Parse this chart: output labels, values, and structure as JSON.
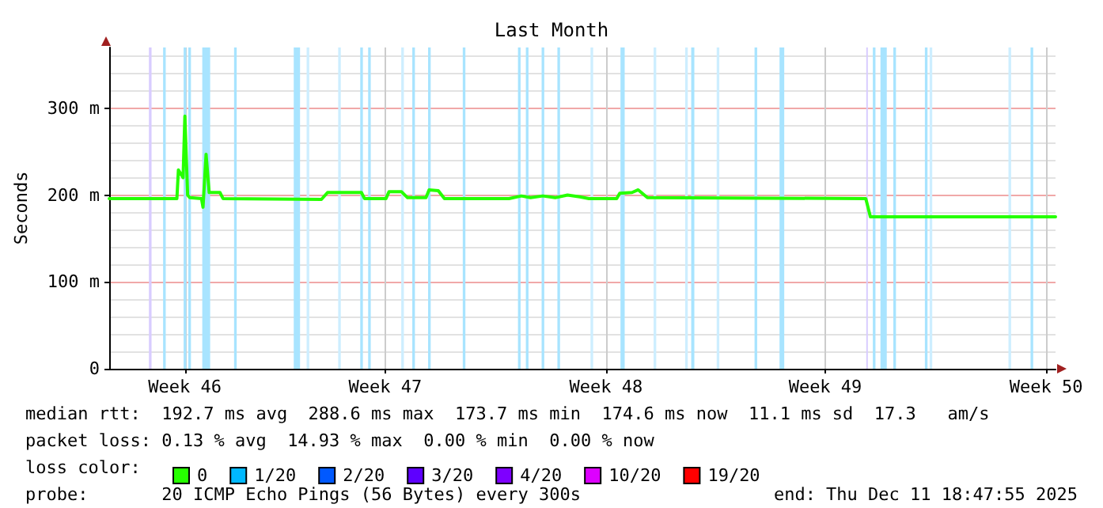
{
  "chart_data": {
    "type": "line",
    "title": "Last Month",
    "ylabel": "Seconds",
    "legend_title": "loss color:",
    "x": [
      "2025-11-11T18:47",
      "2025-11-13T22:17",
      "2025-11-13T23:26",
      "2025-11-14T02:59",
      "2025-11-14T04:21",
      "2025-11-14T06:27",
      "2025-11-14T08:05",
      "2025-11-14T16:59",
      "2025-11-14T18:09",
      "2025-11-14T20:29",
      "2025-11-14T22:50",
      "2025-11-15T07:01",
      "2025-11-15T09:22",
      "2025-11-18T12:15",
      "2025-11-18T16:55",
      "2025-11-19T18:40",
      "2025-11-19T21:00",
      "2025-11-20T13:23",
      "2025-11-20T15:43",
      "2025-11-21T01:05",
      "2025-11-21T05:46",
      "2025-11-21T19:48",
      "2025-11-21T22:09",
      "2025-11-22T05:10",
      "2025-11-22T09:51",
      "2025-11-24T10:59",
      "2025-11-24T20:21",
      "2025-11-25T03:22",
      "2025-11-25T12:43",
      "2025-11-25T22:05",
      "2025-11-26T07:27",
      "2025-11-26T16:48",
      "2025-11-26T23:49",
      "2025-11-27T20:53",
      "2025-11-27T23:13",
      "2025-11-28T08:35",
      "2025-11-28T13:16",
      "2025-11-28T20:17",
      "2025-12-05T18:25",
      "2025-12-05T21:56",
      "2025-12-11T18:47"
    ],
    "series": [
      {
        "name": "0",
        "color": "#26ff00",
        "values": [
          196,
          196,
          229,
          220,
          291,
          200,
          197,
          196,
          186,
          247,
          203,
          203,
          196,
          195,
          203,
          203,
          196,
          196,
          204,
          204,
          197,
          197,
          206,
          205,
          196,
          196,
          199,
          197,
          199,
          197,
          200,
          198,
          196,
          196,
          202,
          203,
          206,
          197,
          196,
          175,
          175
        ]
      },
      {
        "name": "1/20",
        "color": "#00b8ff",
        "values": [
          null,
          null,
          null,
          null,
          null,
          null,
          null,
          null,
          null,
          null,
          null,
          null,
          null,
          null,
          null,
          null,
          null,
          null,
          null,
          null,
          null,
          null,
          null,
          null,
          null,
          null,
          null,
          null,
          null,
          null,
          null,
          null,
          null,
          null,
          null,
          null,
          null,
          null,
          null,
          null,
          null
        ]
      },
      {
        "name": "2/20",
        "color": "#0059ff",
        "values": [
          null,
          null,
          null,
          null,
          null,
          null,
          null,
          null,
          null,
          null,
          null,
          null,
          null,
          null,
          null,
          null,
          null,
          null,
          null,
          null,
          null,
          null,
          null,
          null,
          null,
          null,
          null,
          null,
          null,
          null,
          null,
          null,
          null,
          null,
          null,
          null,
          null,
          null,
          null,
          null,
          null
        ]
      },
      {
        "name": "3/20",
        "color": "#5e00ff",
        "values": [
          null,
          null,
          null,
          null,
          null,
          null,
          null,
          null,
          null,
          null,
          null,
          null,
          null,
          null,
          null,
          null,
          null,
          null,
          null,
          null,
          null,
          null,
          null,
          null,
          null,
          null,
          null,
          null,
          null,
          null,
          null,
          null,
          null,
          null,
          null,
          null,
          null,
          null,
          null,
          null,
          null
        ]
      },
      {
        "name": "4/20",
        "color": "#7e00ff",
        "values": [
          null,
          null,
          null,
          null,
          null,
          null,
          null,
          null,
          null,
          null,
          null,
          null,
          null,
          null,
          null,
          null,
          null,
          null,
          null,
          null,
          null,
          null,
          null,
          null,
          null,
          null,
          null,
          null,
          null,
          null,
          null,
          null,
          null,
          null,
          null,
          null,
          null,
          null,
          null,
          null,
          null
        ]
      },
      {
        "name": "10/20",
        "color": "#dd00ff",
        "values": [
          null,
          null,
          null,
          null,
          null,
          null,
          null,
          null,
          null,
          null,
          null,
          null,
          null,
          null,
          null,
          null,
          null,
          null,
          null,
          null,
          null,
          null,
          null,
          null,
          null,
          null,
          null,
          null,
          null,
          null,
          null,
          null,
          null,
          null,
          null,
          null,
          null,
          null,
          null,
          null,
          null
        ]
      },
      {
        "name": "19/20",
        "color": "#ff0000",
        "values": [
          null,
          null,
          null,
          null,
          null,
          null,
          null,
          null,
          null,
          null,
          null,
          null,
          null,
          null,
          null,
          null,
          null,
          null,
          null,
          null,
          null,
          null,
          null,
          null,
          null,
          null,
          null,
          null,
          null,
          null,
          null,
          null,
          null,
          null,
          null,
          null,
          null,
          null,
          null,
          null,
          null
        ]
      }
    ],
    "xlim": [
      "2025-11-11T18:47",
      "2025-12-11T18:47"
    ],
    "xticks": [
      {
        "value": "2025-11-14T04:23",
        "label": "Week 46"
      },
      {
        "value": "2025-11-20T12:47",
        "label": "Week 47"
      },
      {
        "value": "2025-11-27T12:47",
        "label": "Week 48"
      },
      {
        "value": "2025-12-04T11:35",
        "label": "Week 49"
      },
      {
        "value": "2025-12-11T11:35",
        "label": "Week 50"
      }
    ],
    "ylim": [
      0,
      370
    ],
    "yticks": [
      0,
      {
        "value": 100,
        "label": "100 m"
      },
      {
        "value": 200,
        "label": "200 m"
      },
      {
        "value": 300,
        "label": "300 m"
      }
    ],
    "grid": true,
    "legend": "bottom",
    "marker": "none",
    "line_style": "solid",
    "bands": [
      {
        "axis": "x",
        "from": "2025-11-13T01:00",
        "to": "2025-11-13T03:00",
        "color": "#d8ccff"
      },
      {
        "axis": "x",
        "from": "2025-11-13T11:47",
        "to": "2025-11-13T13:47",
        "color": "#a8e4ff"
      },
      {
        "axis": "x",
        "from": "2025-11-14T03:23",
        "to": "2025-11-14T05:23",
        "color": "#a8e4ff"
      },
      {
        "axis": "x",
        "from": "2025-11-14T06:59",
        "to": "2025-11-14T08:59",
        "color": "#a8e4ff"
      },
      {
        "axis": "x",
        "from": "2025-11-14T17:35",
        "to": "2025-11-14T23:35",
        "color": "#a8e4ff"
      },
      {
        "axis": "x",
        "from": "2025-11-15T17:47",
        "to": "2025-11-15T19:47",
        "color": "#a8e4ff"
      },
      {
        "axis": "x",
        "from": "2025-11-17T15:11",
        "to": "2025-11-17T19:59",
        "color": "#a8e4ff"
      },
      {
        "axis": "x",
        "from": "2025-11-18T00:59",
        "to": "2025-11-18T02:59",
        "color": "#cdeeff"
      },
      {
        "axis": "x",
        "from": "2025-11-19T00:59",
        "to": "2025-11-19T02:59",
        "color": "#cdeeff"
      },
      {
        "axis": "x",
        "from": "2025-11-19T17:47",
        "to": "2025-11-19T19:47",
        "color": "#a8e4ff"
      },
      {
        "axis": "x",
        "from": "2025-11-19T23:47",
        "to": "2025-11-20T01:47",
        "color": "#a8e4ff"
      },
      {
        "axis": "x",
        "from": "2025-11-21T00:59",
        "to": "2025-11-21T02:59",
        "color": "#cdeeff"
      },
      {
        "axis": "x",
        "from": "2025-11-21T09:23",
        "to": "2025-11-21T11:23",
        "color": "#a8e4ff"
      },
      {
        "axis": "x",
        "from": "2025-11-21T21:23",
        "to": "2025-11-21T23:23",
        "color": "#a8e4ff"
      },
      {
        "axis": "x",
        "from": "2025-11-22T23:47",
        "to": "2025-11-23T01:47",
        "color": "#a8e4ff"
      },
      {
        "axis": "x",
        "from": "2025-11-24T17:47",
        "to": "2025-11-24T19:47",
        "color": "#a8e4ff"
      },
      {
        "axis": "x",
        "from": "2025-11-24T23:47",
        "to": "2025-11-25T01:47",
        "color": "#a8e4ff"
      },
      {
        "axis": "x",
        "from": "2025-11-25T11:47",
        "to": "2025-11-25T13:47",
        "color": "#a8e4ff"
      },
      {
        "axis": "x",
        "from": "2025-11-25T23:47",
        "to": "2025-11-26T01:47",
        "color": "#a8e4ff"
      },
      {
        "axis": "x",
        "from": "2025-11-27T00:59",
        "to": "2025-11-27T02:59",
        "color": "#cdeeff"
      },
      {
        "axis": "x",
        "from": "2025-11-27T23:47",
        "to": "2025-11-28T02:59",
        "color": "#a8e4ff"
      },
      {
        "axis": "x",
        "from": "2025-11-29T00:59",
        "to": "2025-11-29T02:59",
        "color": "#cdeeff"
      },
      {
        "axis": "x",
        "from": "2025-11-30T00:59",
        "to": "2025-11-30T02:59",
        "color": "#cdeeff"
      },
      {
        "axis": "x",
        "from": "2025-11-30T05:35",
        "to": "2025-11-30T07:59",
        "color": "#a8e4ff"
      },
      {
        "axis": "x",
        "from": "2025-12-01T00:59",
        "to": "2025-12-01T02:59",
        "color": "#cdeeff"
      },
      {
        "axis": "x",
        "from": "2025-12-02T05:47",
        "to": "2025-12-02T07:47",
        "color": "#a8e4ff"
      },
      {
        "axis": "x",
        "from": "2025-12-03T00:47",
        "to": "2025-12-03T04:23",
        "color": "#a8e4ff"
      },
      {
        "axis": "x",
        "from": "2025-12-05T18:47",
        "to": "2025-12-05T19:59",
        "color": "#d8ccff"
      },
      {
        "axis": "x",
        "from": "2025-12-05T23:47",
        "to": "2025-12-06T01:47",
        "color": "#a8e4ff"
      },
      {
        "axis": "x",
        "from": "2025-12-06T05:35",
        "to": "2025-12-06T10:23",
        "color": "#a8e4ff"
      },
      {
        "axis": "x",
        "from": "2025-12-06T15:23",
        "to": "2025-12-06T17:23",
        "color": "#a8e4ff"
      },
      {
        "axis": "x",
        "from": "2025-12-07T15:23",
        "to": "2025-12-07T17:23",
        "color": "#a8e4ff"
      },
      {
        "axis": "x",
        "from": "2025-12-07T18:59",
        "to": "2025-12-07T20:59",
        "color": "#cdeeff"
      },
      {
        "axis": "x",
        "from": "2025-12-10T06:59",
        "to": "2025-12-10T08:59",
        "color": "#cdeeff"
      },
      {
        "axis": "x",
        "from": "2025-12-10T23:47",
        "to": "2025-12-11T01:47",
        "color": "#a8e4ff"
      }
    ],
    "annotations": [
      "median rtt:  192.7 ms avg  288.6 ms max  173.7 ms min  174.6 ms now  11.1 ms sd  17.3   am/s",
      "packet loss: 0.13 % avg  14.93 % max  0.00 % min  0.00 % now",
      "probe:       20 ICMP Echo Pings (56 Bytes) every 300s",
      "end: Thu Dec 11 18:47:55 2025"
    ]
  }
}
